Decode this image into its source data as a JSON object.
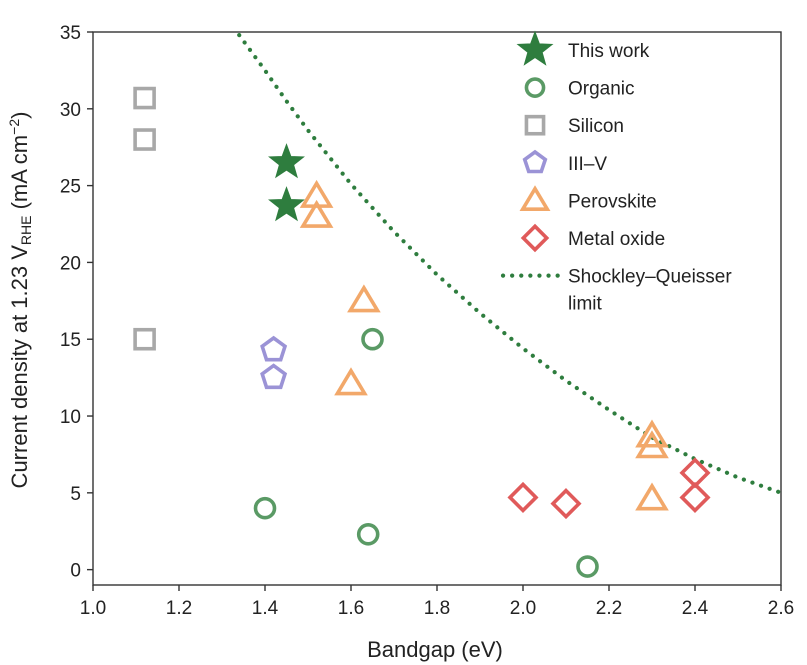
{
  "chart_data": {
    "type": "scatter",
    "xlabel": "Bandgap (eV)",
    "ylabel": {
      "prefix": "Current density at 1.23 V",
      "subscript": "RHE",
      "unit_open": " (mA cm",
      "superscript": "−2",
      "unit_close": ")"
    },
    "xlim": [
      1.0,
      2.6
    ],
    "ylim": [
      -1,
      35
    ],
    "xticks": [
      "1.0",
      "1.2",
      "1.4",
      "1.6",
      "1.8",
      "2.0",
      "2.2",
      "2.4",
      "2.6"
    ],
    "yticks": [
      "0",
      "5",
      "10",
      "15",
      "20",
      "25",
      "30",
      "35"
    ],
    "xtick_values": [
      1.0,
      1.2,
      1.4,
      1.6,
      1.8,
      2.0,
      2.2,
      2.4,
      2.6
    ],
    "ytick_values": [
      0,
      5,
      10,
      15,
      20,
      25,
      30,
      35
    ],
    "grid": false,
    "legend_position": "top-right",
    "series": [
      {
        "name": "This work",
        "marker": "star",
        "color": "#2e7d3e",
        "filled": true,
        "points": [
          [
            1.45,
            26.5
          ],
          [
            1.45,
            23.7
          ]
        ]
      },
      {
        "name": "Organic",
        "marker": "circle",
        "color": "#5a9a65",
        "filled": false,
        "points": [
          [
            1.4,
            4.0
          ],
          [
            1.64,
            2.3
          ],
          [
            1.65,
            15.0
          ],
          [
            2.15,
            0.2
          ]
        ]
      },
      {
        "name": "Silicon",
        "marker": "square",
        "color": "#a8a8a8",
        "filled": false,
        "points": [
          [
            1.12,
            30.7
          ],
          [
            1.12,
            28.0
          ],
          [
            1.12,
            15.0
          ]
        ]
      },
      {
        "name": "III–V",
        "marker": "pentagon",
        "color": "#9b93d6",
        "filled": false,
        "points": [
          [
            1.42,
            14.3
          ],
          [
            1.42,
            12.5
          ]
        ]
      },
      {
        "name": "Perovskite",
        "marker": "triangle",
        "color": "#f2a86a",
        "filled": false,
        "points": [
          [
            1.52,
            24.3
          ],
          [
            1.52,
            23.0
          ],
          [
            1.63,
            17.5
          ],
          [
            1.6,
            12.1
          ],
          [
            2.3,
            8.7
          ],
          [
            2.3,
            8.0
          ],
          [
            2.3,
            4.6
          ]
        ]
      },
      {
        "name": "Metal oxide",
        "marker": "diamond",
        "color": "#e05a5a",
        "filled": false,
        "points": [
          [
            2.0,
            4.7
          ],
          [
            2.1,
            4.3
          ],
          [
            2.4,
            6.3
          ],
          [
            2.4,
            4.7
          ]
        ]
      }
    ],
    "curve": {
      "name_lines": [
        "Shockley–Queisser",
        "limit"
      ],
      "style": "dotted",
      "color": "#2e7d3e",
      "points": [
        [
          1.34,
          34.8
        ],
        [
          1.4,
          32.5
        ],
        [
          1.45,
          30.5
        ],
        [
          1.5,
          28.6
        ],
        [
          1.6,
          25.1
        ],
        [
          1.7,
          22.0
        ],
        [
          1.8,
          19.2
        ],
        [
          1.9,
          16.7
        ],
        [
          2.0,
          14.4
        ],
        [
          2.1,
          12.3
        ],
        [
          2.2,
          10.4
        ],
        [
          2.3,
          8.6
        ],
        [
          2.4,
          7.2
        ],
        [
          2.5,
          6.0
        ],
        [
          2.6,
          5.0
        ]
      ]
    }
  }
}
